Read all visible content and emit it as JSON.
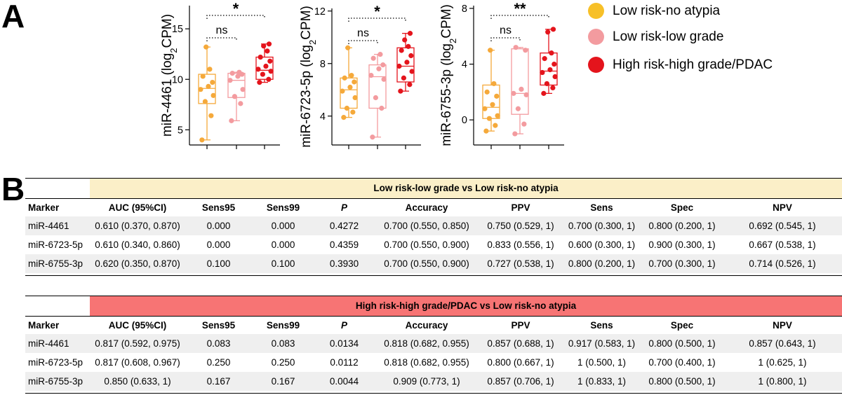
{
  "panel_labels": {
    "a": "A",
    "b": "B"
  },
  "colors": {
    "low_no_atypia": "#F5A93A",
    "low_low_grade": "#F39B9F",
    "high_grade": "#E4141C",
    "legend_low_no_atypia": "#F7C028",
    "table1_header_bg": "#FBEFC8",
    "table2_header_bg": "#F77474"
  },
  "legend": [
    {
      "label": "Low risk-no atypia",
      "color": "#F7C028"
    },
    {
      "label": "Low risk-low grade",
      "color": "#F39B9F"
    },
    {
      "label": "High risk-high grade/PDAC",
      "color": "#E4141C"
    }
  ],
  "chart_data": [
    {
      "type": "box",
      "ylabel": "miR-4461 (log2CPM)",
      "ylabel_parts": [
        "miR-4461 (log",
        "2",
        "CPM)"
      ],
      "ylim": [
        3.5,
        17.3
      ],
      "yticks": [
        5,
        10,
        15
      ],
      "groups": [
        {
          "name": "Low risk-no atypia",
          "q1": 7.6,
          "median": 9.1,
          "q3": 10.5,
          "min": 4.0,
          "max": 13.2,
          "points": [
            4.0,
            6.4,
            7.8,
            8.4,
            9.0,
            9.3,
            9.7,
            10.3,
            11.0,
            13.2
          ]
        },
        {
          "name": "Low risk-low grade",
          "q1": 8.2,
          "median": 9.9,
          "q3": 10.6,
          "min": 5.9,
          "max": 10.7,
          "points": [
            5.9,
            7.6,
            8.3,
            9.0,
            9.9,
            10.3,
            10.5,
            10.6,
            10.7
          ]
        },
        {
          "name": "High risk-high grade/PDAC",
          "q1": 10.0,
          "median": 10.9,
          "q3": 12.2,
          "min": 9.7,
          "max": 13.5,
          "points": [
            9.7,
            10.0,
            10.5,
            10.8,
            11.0,
            11.3,
            11.8,
            12.2,
            12.8,
            13.3,
            13.5
          ]
        }
      ],
      "comparisons": [
        {
          "pair": [
            0,
            1
          ],
          "label": "ns",
          "level": 1
        },
        {
          "pair": [
            0,
            2
          ],
          "label": "*",
          "level": 2
        }
      ]
    },
    {
      "type": "box",
      "ylabel": "miR-6723-5p (log2CPM)",
      "ylabel_parts": [
        "miR-6723-5p (log",
        "2",
        "CPM)"
      ],
      "ylim": [
        1.8,
        12.2
      ],
      "yticks": [
        4,
        8,
        12
      ],
      "groups": [
        {
          "name": "Low risk-no atypia",
          "q1": 4.6,
          "median": 6.0,
          "q3": 6.9,
          "min": 3.9,
          "max": 9.2,
          "points": [
            3.9,
            4.3,
            4.6,
            5.4,
            5.9,
            6.2,
            6.6,
            6.9,
            7.1,
            9.2
          ]
        },
        {
          "name": "Low risk-low grade",
          "q1": 4.6,
          "median": 7.0,
          "q3": 7.9,
          "min": 2.4,
          "max": 8.7,
          "points": [
            2.4,
            4.6,
            5.4,
            6.8,
            7.1,
            7.6,
            7.9,
            8.4,
            8.7
          ]
        },
        {
          "name": "High risk-high grade/PDAC",
          "q1": 6.6,
          "median": 7.8,
          "q3": 9.2,
          "min": 5.9,
          "max": 10.3,
          "points": [
            5.9,
            6.4,
            6.9,
            7.4,
            7.8,
            8.1,
            8.6,
            9.0,
            9.3,
            9.8,
            10.3
          ]
        }
      ],
      "comparisons": [
        {
          "pair": [
            0,
            1
          ],
          "label": "ns",
          "level": 1
        },
        {
          "pair": [
            0,
            2
          ],
          "label": "*",
          "level": 2
        }
      ]
    },
    {
      "type": "box",
      "ylabel": "miR-6755-3p (log2CPM)",
      "ylabel_parts": [
        "miR-6755-3p (log",
        "2",
        "CPM)"
      ],
      "ylim": [
        -1.8,
        8.2
      ],
      "yticks": [
        0,
        4,
        8
      ],
      "groups": [
        {
          "name": "Low risk-no atypia",
          "q1": 0.1,
          "median": 0.9,
          "q3": 2.5,
          "min": -0.8,
          "max": 5.0,
          "points": [
            -0.8,
            -0.4,
            0.1,
            0.3,
            0.8,
            1.1,
            1.7,
            2.0,
            2.6,
            5.0
          ]
        },
        {
          "name": "Low risk-low grade",
          "q1": 0.4,
          "median": 1.9,
          "q3": 5.1,
          "min": -1.0,
          "max": 5.2,
          "points": [
            -1.0,
            -0.3,
            0.8,
            1.8,
            1.9,
            2.2,
            5.0,
            5.2
          ]
        },
        {
          "name": "High risk-high grade/PDAC",
          "q1": 2.5,
          "median": 3.5,
          "q3": 4.8,
          "min": 1.9,
          "max": 6.5,
          "points": [
            1.9,
            2.3,
            2.6,
            3.1,
            3.4,
            3.6,
            4.0,
            4.4,
            4.8,
            6.3,
            6.5
          ]
        }
      ],
      "comparisons": [
        {
          "pair": [
            0,
            1
          ],
          "label": "ns",
          "level": 1
        },
        {
          "pair": [
            0,
            2
          ],
          "label": "**",
          "level": 2
        }
      ]
    }
  ],
  "tables": [
    {
      "comparison": "Low risk-low grade vs Low risk-no atypia",
      "header_color": "#FBEFC8",
      "columns": [
        "Marker",
        "AUC (95%CI)",
        "Sens95",
        "Sens99",
        "P",
        "Accuracy",
        "PPV",
        "Sens",
        "Spec",
        "NPV"
      ],
      "rows": [
        [
          "miR-4461",
          "0.610 (0.370, 0.870)",
          "0.000",
          "0.000",
          "0.4272",
          "0.700 (0.550, 0.850)",
          "0.750 (0.529, 1)",
          "0.700 (0.300, 1)",
          "0.800 (0.200, 1)",
          "0.692 (0.545, 1)"
        ],
        [
          "miR-6723-5p",
          "0.610 (0.340, 0.860)",
          "0.000",
          "0.000",
          "0.4359",
          "0.700 (0.550, 0.900)",
          "0.833 (0.556, 1)",
          "0.600 (0.300, 1)",
          "0.900 (0.300, 1)",
          "0.667 (0.538, 1)"
        ],
        [
          "miR-6755-3p",
          "0.620 (0.350, 0.870)",
          "0.100",
          "0.100",
          "0.3930",
          "0.700 (0.550, 0.900)",
          "0.727 (0.538, 1)",
          "0.800 (0.200, 1)",
          "0.700 (0.300, 1)",
          "0.714 (0.526, 1)"
        ]
      ]
    },
    {
      "comparison": "High risk-high grade/PDAC vs Low risk-no atypia",
      "header_color": "#F77474",
      "columns": [
        "Marker",
        "AUC (95%CI)",
        "Sens95",
        "Sens99",
        "P",
        "Accuracy",
        "PPV",
        "Sens",
        "Spec",
        "NPV"
      ],
      "rows": [
        [
          "miR-4461",
          "0.817 (0.592, 0.975)",
          "0.083",
          "0.083",
          "0.0134",
          "0.818 (0.682, 0.955)",
          "0.857 (0.688, 1)",
          "0.917 (0.583, 1)",
          "0.800 (0.500, 1)",
          "0.857 (0.643, 1)"
        ],
        [
          "miR-6723-5p",
          "0.817 (0.608, 0.967)",
          "0.250",
          "0.250",
          "0.0112",
          "0.818 (0.682, 0.955)",
          "0.800 (0.667, 1)",
          "1 (0.500, 1)",
          "0.700 (0.400, 1)",
          "1 (0.625, 1)"
        ],
        [
          "miR-6755-3p",
          "0.850 (0.633, 1)",
          "0.167",
          "0.167",
          "0.0044",
          "0.909 (0.773, 1)",
          "0.857 (0.706, 1)",
          "1 (0.833, 1)",
          "0.800 (0.500, 1)",
          "1 (0.800, 1)"
        ]
      ]
    }
  ]
}
